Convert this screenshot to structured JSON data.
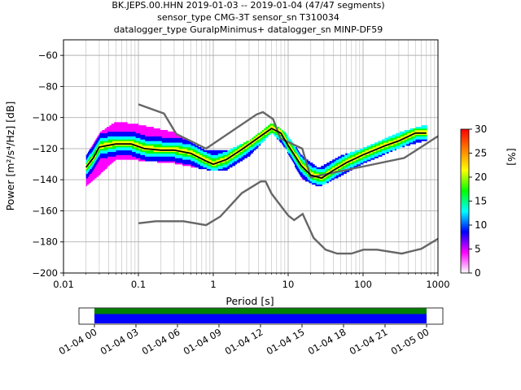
{
  "title_lines": [
    "BK.JEPS.00.HHN   2019-01-03 -- 2019-01-04  (47/47 segments)",
    "sensor_type CMG-3T sensor_sn T310034",
    "datalogger_type GuralpMinimus+ datalogger_sn MINP-DF59"
  ],
  "chart_data": [
    {
      "type": "heatmap",
      "name": "ppsd",
      "xlabel": "Period [s]",
      "ylabel": "Power [m²/s⁴/Hz] [dB]",
      "x_scale": "log",
      "xlim": [
        0.01,
        1000
      ],
      "ylim": [
        -200,
        -50
      ],
      "x_ticks": [
        0.01,
        0.1,
        1,
        10,
        100,
        1000
      ],
      "x_tick_labels": [
        "0.01",
        "0.1",
        "1",
        "10",
        "100",
        "1000"
      ],
      "y_ticks": [
        -200,
        -180,
        -160,
        -140,
        -120,
        -100,
        -80,
        -60
      ],
      "y_tick_labels": [
        "−200",
        "−180",
        "−160",
        "−140",
        "−120",
        "−100",
        "−80",
        "−60"
      ],
      "grid": true,
      "colorbar": {
        "label": "[%]",
        "range": [
          0,
          30
        ],
        "ticks": [
          0,
          5,
          10,
          15,
          20,
          25,
          30
        ],
        "tick_labels": [
          "0",
          "5",
          "10",
          "15",
          "20",
          "25",
          "30"
        ],
        "colormap": [
          "#ffffff",
          "#ff00ff",
          "#0000ff",
          "#00ffff",
          "#00ff00",
          "#ffff00",
          "#ff8000",
          "#ff0000"
        ]
      },
      "mode_curve": {
        "name": "mode",
        "color": "#000000",
        "points": [
          [
            0.02,
            -132
          ],
          [
            0.025,
            -126
          ],
          [
            0.03,
            -119
          ],
          [
            0.05,
            -117
          ],
          [
            0.08,
            -117
          ],
          [
            0.12,
            -120
          ],
          [
            0.2,
            -121
          ],
          [
            0.3,
            -121
          ],
          [
            0.5,
            -123
          ],
          [
            0.8,
            -128
          ],
          [
            1.0,
            -130
          ],
          [
            1.5,
            -127
          ],
          [
            2.5,
            -120
          ],
          [
            4.0,
            -113
          ],
          [
            6.0,
            -107
          ],
          [
            8.0,
            -110
          ],
          [
            10,
            -118
          ],
          [
            15,
            -131
          ],
          [
            20,
            -137
          ],
          [
            28,
            -139
          ],
          [
            40,
            -134
          ],
          [
            60,
            -129
          ],
          [
            100,
            -124
          ],
          [
            200,
            -118
          ],
          [
            300,
            -115
          ],
          [
            500,
            -110
          ],
          [
            700,
            -110
          ]
        ]
      },
      "noise_models": [
        {
          "name": "new-high-noise-model",
          "color": "#666666",
          "points": [
            [
              0.1,
              -91.5
            ],
            [
              0.22,
              -97.4
            ],
            [
              0.32,
              -110.5
            ],
            [
              0.8,
              -120
            ],
            [
              3.8,
              -98
            ],
            [
              4.6,
              -96.5
            ],
            [
              6.3,
              -101
            ],
            [
              7.9,
              -113.5
            ],
            [
              15.4,
              -120
            ],
            [
              20,
              -138.5
            ],
            [
              354.8,
              -126
            ],
            [
              1000,
              -112
            ]
          ]
        },
        {
          "name": "new-low-noise-model",
          "color": "#666666",
          "points": [
            [
              0.1,
              -168
            ],
            [
              0.17,
              -166.7
            ],
            [
              0.4,
              -166.7
            ],
            [
              0.8,
              -169.2
            ],
            [
              1.24,
              -163.7
            ],
            [
              2.4,
              -148.6
            ],
            [
              4.3,
              -141.1
            ],
            [
              5,
              -141.1
            ],
            [
              6,
              -149
            ],
            [
              10,
              -163
            ],
            [
              12,
              -166
            ],
            [
              15.6,
              -162
            ],
            [
              21.9,
              -177.5
            ],
            [
              31.6,
              -185
            ],
            [
              45,
              -187.5
            ],
            [
              70,
              -187.5
            ],
            [
              101,
              -185
            ],
            [
              154,
              -185
            ],
            [
              328,
              -187.5
            ],
            [
              600,
              -184.4
            ],
            [
              1000,
              -178
            ]
          ]
        }
      ],
      "density_envelope": {
        "upper": [
          [
            0.02,
            -125
          ],
          [
            0.03,
            -110
          ],
          [
            0.05,
            -103
          ],
          [
            0.1,
            -105
          ],
          [
            0.3,
            -110
          ],
          [
            0.8,
            -122
          ],
          [
            1.5,
            -122
          ],
          [
            3,
            -115
          ],
          [
            6,
            -104
          ],
          [
            9,
            -110
          ],
          [
            15,
            -125
          ],
          [
            25,
            -133
          ],
          [
            50,
            -125
          ],
          [
            100,
            -120
          ],
          [
            300,
            -110
          ],
          [
            700,
            -105
          ]
        ],
        "lower": [
          [
            0.02,
            -144
          ],
          [
            0.03,
            -137
          ],
          [
            0.05,
            -127
          ],
          [
            0.1,
            -128
          ],
          [
            0.3,
            -130
          ],
          [
            0.8,
            -134
          ],
          [
            1.5,
            -134
          ],
          [
            3,
            -125
          ],
          [
            6,
            -110
          ],
          [
            9,
            -120
          ],
          [
            15,
            -140
          ],
          [
            25,
            -145
          ],
          [
            50,
            -138
          ],
          [
            100,
            -130
          ],
          [
            300,
            -120
          ],
          [
            700,
            -115
          ]
        ]
      }
    },
    {
      "type": "timeline",
      "name": "data-coverage",
      "x_tick_labels": [
        "01-04 00",
        "01-04 03",
        "01-04 06",
        "01-04 09",
        "01-04 12",
        "01-04 15",
        "01-04 18",
        "01-04 21",
        "01-05 00"
      ],
      "x_ticks_hours": [
        0,
        3,
        6,
        9,
        12,
        15,
        18,
        21,
        24
      ],
      "coverage_hours": [
        0,
        24
      ],
      "colors": {
        "upper": "#008000",
        "lower": "#0000ff"
      }
    }
  ]
}
